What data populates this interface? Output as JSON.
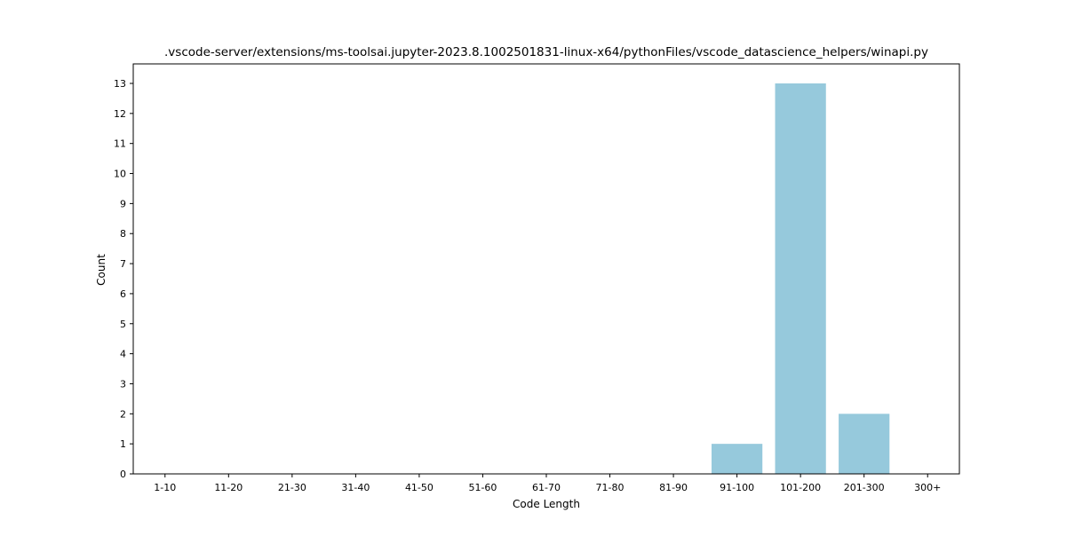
{
  "chart_data": {
    "type": "bar",
    "title": ".vscode-server/extensions/ms-toolsai.jupyter-2023.8.1002501831-linux-x64/pythonFiles/vscode_datascience_helpers/winapi.py",
    "xlabel": "Code Length",
    "ylabel": "Count",
    "categories": [
      "1-10",
      "11-20",
      "21-30",
      "31-40",
      "41-50",
      "51-60",
      "61-70",
      "71-80",
      "81-90",
      "91-100",
      "101-200",
      "201-300",
      "300+"
    ],
    "values": [
      0,
      0,
      0,
      0,
      0,
      0,
      0,
      0,
      0,
      1,
      13,
      2,
      0
    ],
    "ylim": [
      0,
      13.65
    ],
    "yticks": [
      0,
      1,
      2,
      3,
      4,
      5,
      6,
      7,
      8,
      9,
      10,
      11,
      12,
      13
    ],
    "grid": false,
    "legend": "none",
    "bar_color": "#96c9dc"
  }
}
